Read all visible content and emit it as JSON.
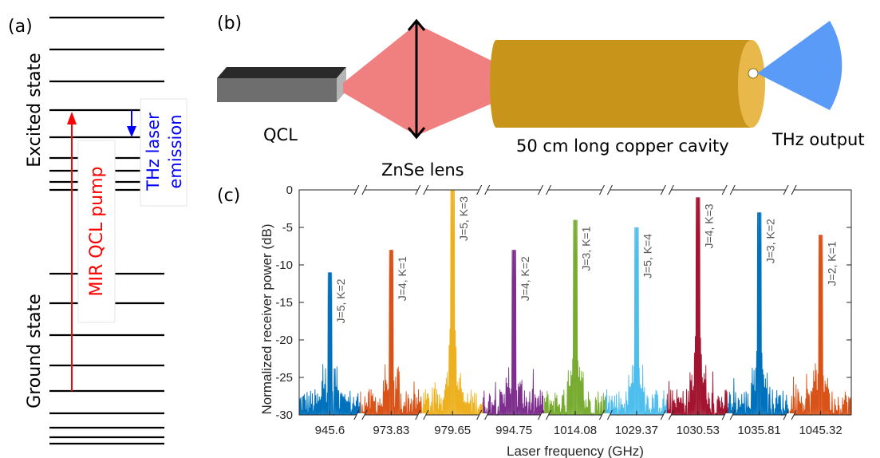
{
  "panel_a": {
    "label": "(a)",
    "excited_state": "Excited state",
    "ground_state": "Ground state",
    "pump_label": "MIR QCL pump",
    "emission_label_1": "THz laser",
    "emission_label_2": "emission",
    "colors": {
      "pump": "#ff0000",
      "emission": "#0000ff",
      "levels": "#000000"
    }
  },
  "panel_b": {
    "label": "(b)",
    "qcl": "QCL",
    "lens": "ZnSe lens",
    "cavity": "50 cm long copper cavity",
    "output": "THz output",
    "colors": {
      "beam": "#f08080",
      "cavity": "#c8951a",
      "cavity_end": "#e9b84a",
      "thz": "#5b9bf8",
      "qcl_body": "#777777"
    }
  },
  "panel_c": {
    "label": "(c)"
  },
  "chart_data": {
    "type": "line",
    "xlabel": "Laser frequency (GHz)",
    "ylabel": "Normalized receiver power (dB)",
    "ylim": [
      -30,
      0
    ],
    "yticks": [
      "0",
      "-5",
      "-10",
      "-15",
      "-20",
      "-25",
      "-30"
    ],
    "ytick_values": [
      0,
      -5,
      -10,
      -15,
      -20,
      -25,
      -30
    ],
    "x_break_axis": true,
    "grid": false,
    "series": [
      {
        "name": "J=5, K=2",
        "center": "945.6",
        "peak": -11,
        "color": "#0072bd"
      },
      {
        "name": "J=4, K=1",
        "center": "973.83",
        "peak": -8,
        "color": "#d95319"
      },
      {
        "name": "J=5, K=3",
        "center": "979.65",
        "peak": 0,
        "color": "#edb120"
      },
      {
        "name": "J=4, K=2",
        "center": "994.75",
        "peak": -8,
        "color": "#7e2f8e"
      },
      {
        "name": "J=3, K=1",
        "center": "1014.08",
        "peak": -4,
        "color": "#77ac30"
      },
      {
        "name": "J=5, K=4",
        "center": "1029.37",
        "peak": -5,
        "color": "#4dbeee"
      },
      {
        "name": "J=4, K=3",
        "center": "1030.53",
        "peak": -1,
        "color": "#a2142f"
      },
      {
        "name": "J=3, K=2",
        "center": "1035.81",
        "peak": -3,
        "color": "#0072bd"
      },
      {
        "name": "J=2, K=1",
        "center": "1045.32",
        "peak": -6,
        "color": "#d95319"
      }
    ]
  }
}
